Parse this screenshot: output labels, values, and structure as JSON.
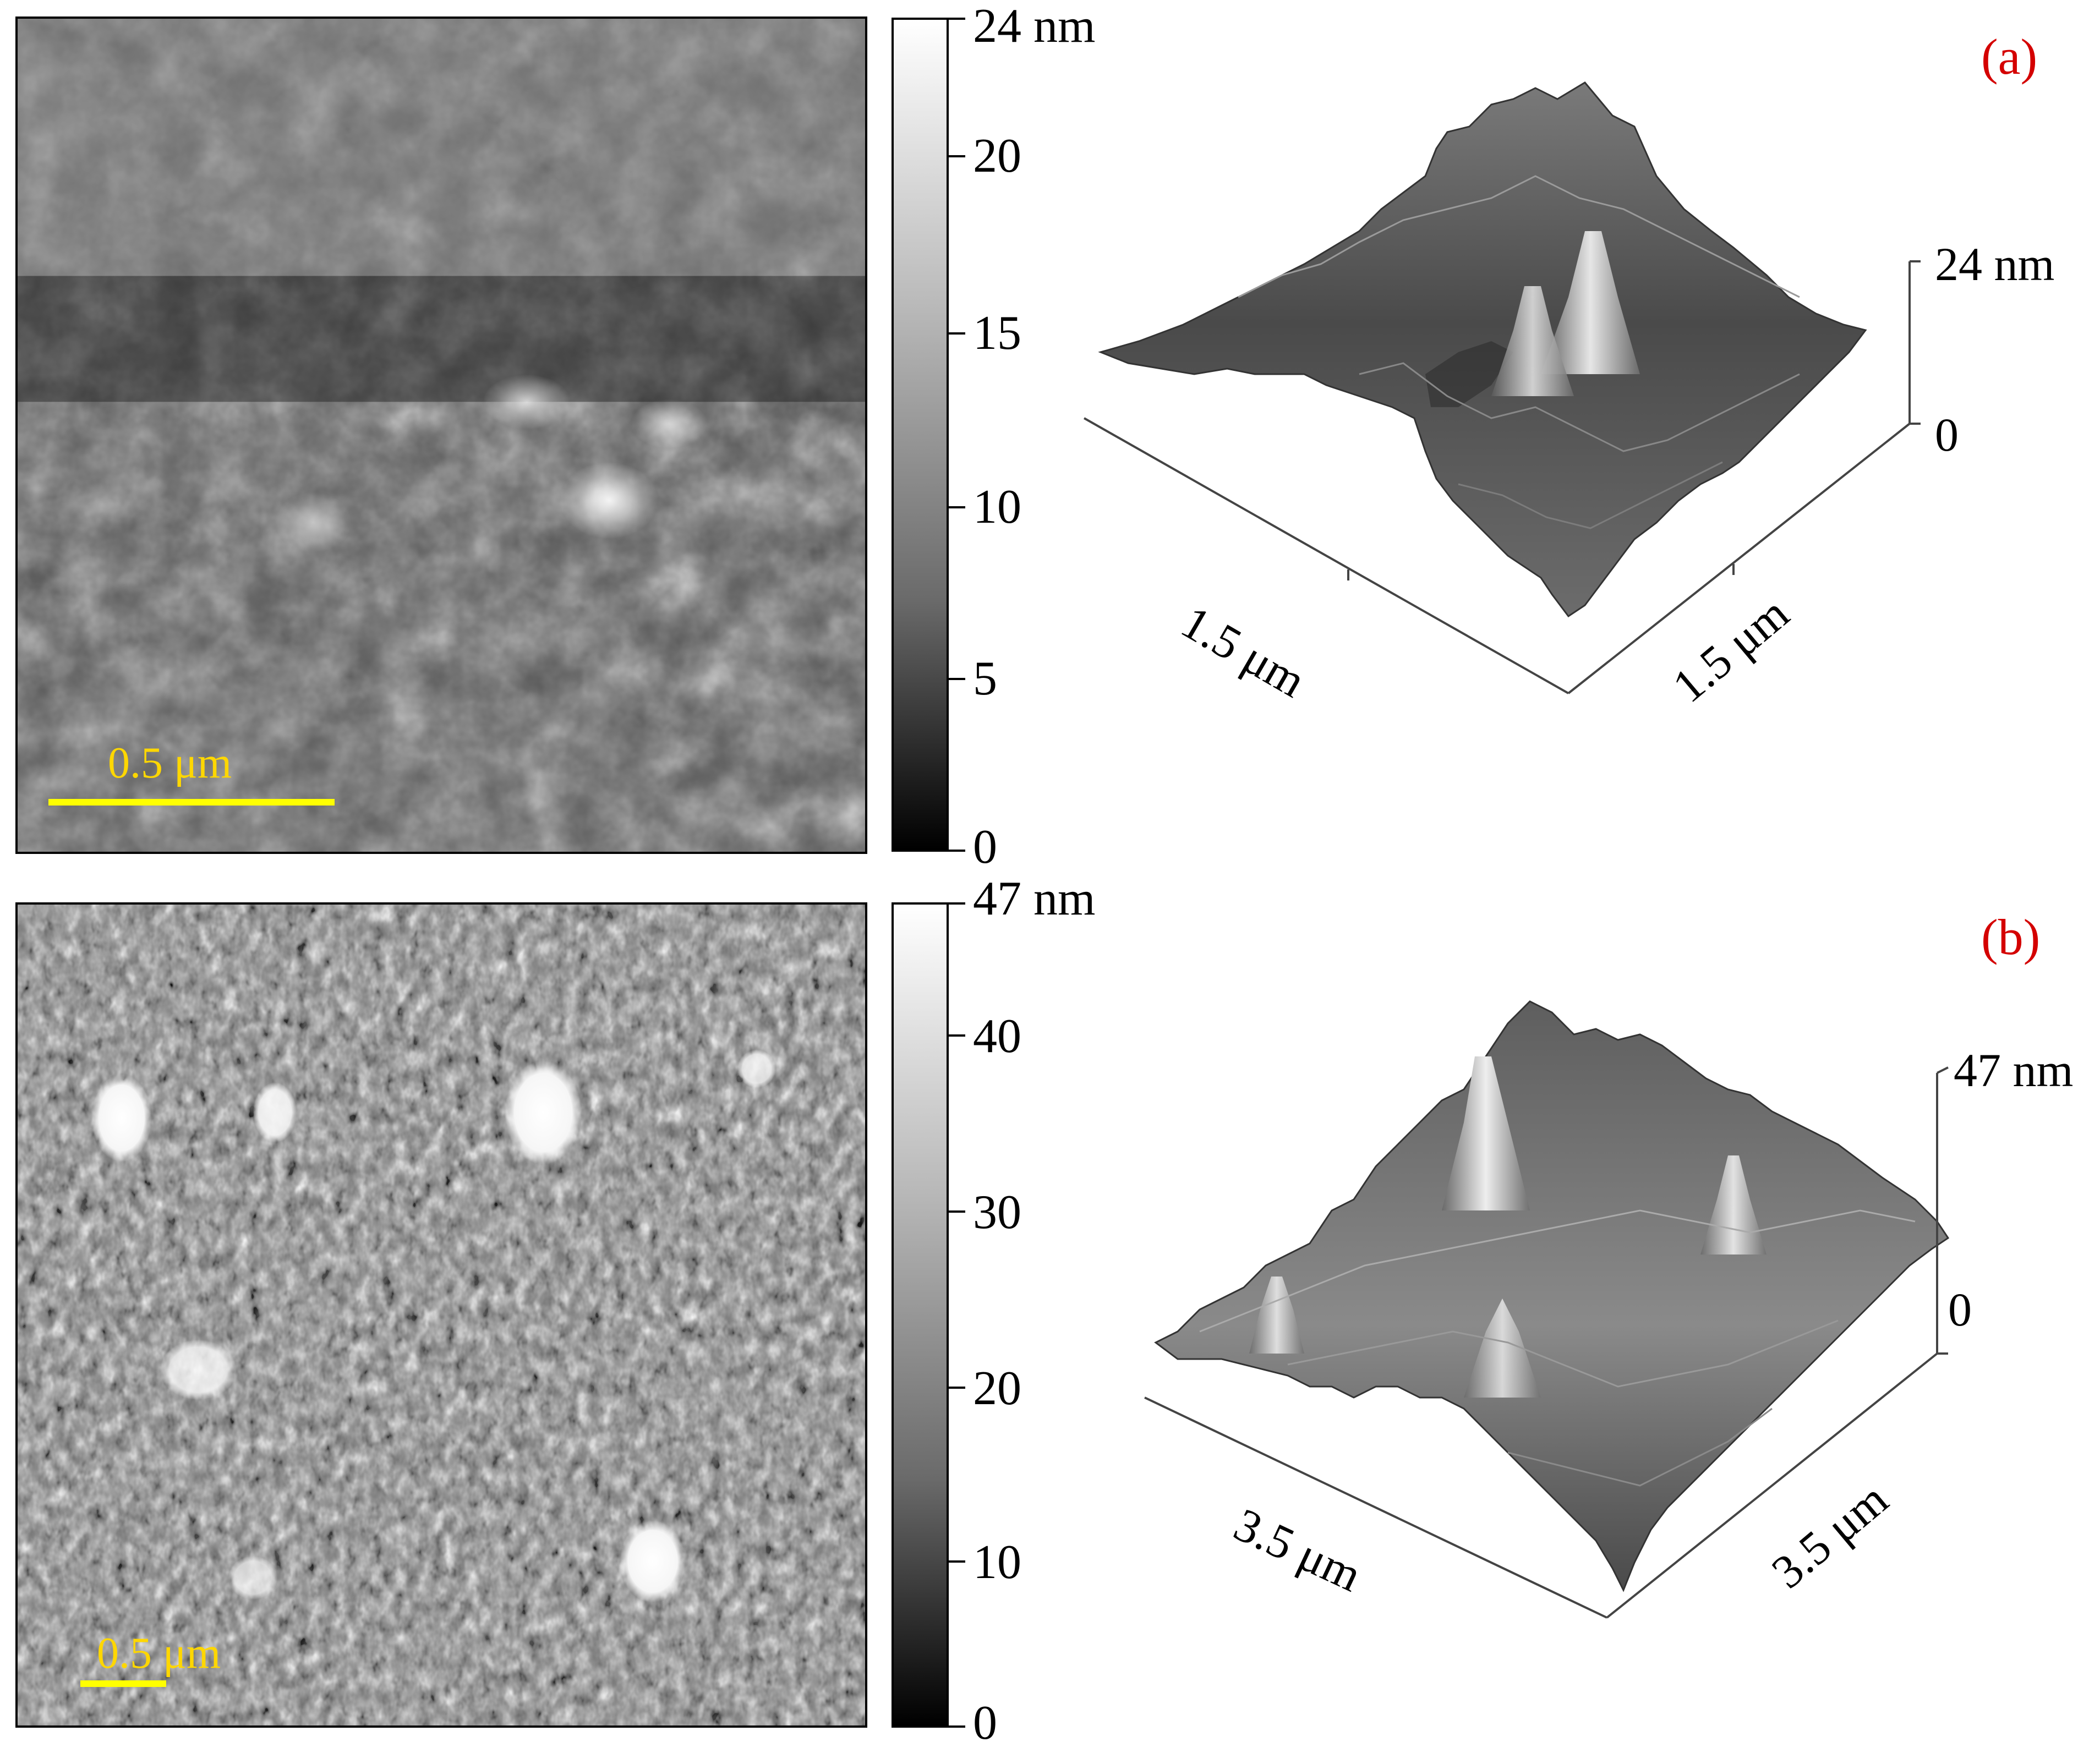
{
  "panel_a": {
    "label": "(a)",
    "scalebar_label": "0.5 μm",
    "colorbar_ticks": [
      "24 nm",
      "20",
      "15",
      "10",
      "5",
      "0"
    ],
    "z_top_label": "24 nm",
    "z_bottom_label": "0",
    "x_axis_label": "1.5 μm",
    "y_axis_label": "1.5 μm"
  },
  "panel_b": {
    "label": "(b)",
    "scalebar_label": "0.5 μm",
    "colorbar_ticks": [
      "47 nm",
      "40",
      "30",
      "20",
      "10",
      "0"
    ],
    "z_top_label": "47 nm",
    "z_bottom_label": "0",
    "x_axis_label": "3.5 μm",
    "y_axis_label": "3.5 μm"
  },
  "colors": {
    "panel_label": "#d40000",
    "scalebar": "#ffff00",
    "scalebar_text": "#ffd700"
  }
}
